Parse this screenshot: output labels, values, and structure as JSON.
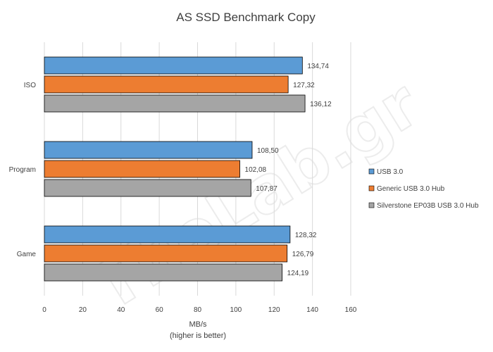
{
  "watermark": "TheLab.gr",
  "chart_data": {
    "type": "bar",
    "orientation": "horizontal",
    "title": "AS SSD Benchmark Copy",
    "xlabel": "MB/s",
    "xlabel_sub": "(higher is better)",
    "ylabel": "",
    "xlim": [
      0,
      160
    ],
    "xticks": [
      0,
      20,
      40,
      60,
      80,
      100,
      120,
      140,
      160
    ],
    "grid": true,
    "legend_position": "right",
    "categories": [
      "ISO",
      "Program",
      "Game"
    ],
    "series": [
      {
        "name": "USB 3.0",
        "color": "#5b9bd5",
        "values": [
          134.74,
          108.5,
          128.32
        ],
        "labels": [
          "134,74",
          "108,50",
          "128,32"
        ]
      },
      {
        "name": "Generic USB 3.0 Hub",
        "color": "#ed7d31",
        "values": [
          127.32,
          102.08,
          126.79
        ],
        "labels": [
          "127,32",
          "102,08",
          "126,79"
        ]
      },
      {
        "name": "Silverstone EP03B USB 3.0 Hub",
        "color": "#a5a5a5",
        "values": [
          136.12,
          107.87,
          124.19
        ],
        "labels": [
          "136,12",
          "107,87",
          "124,19"
        ]
      }
    ]
  }
}
